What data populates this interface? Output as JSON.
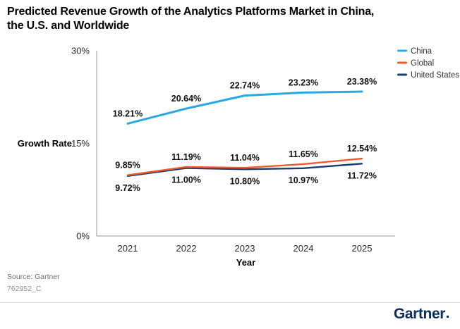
{
  "title": {
    "line1": "Predicted Revenue Growth of the Analytics Platforms Market in China,",
    "line2": "the U.S. and Worldwide"
  },
  "footer": {
    "source": "Source: Gartner",
    "code": "762952_C",
    "logo_text": "Gartner"
  },
  "colors": {
    "china_line": "#29A9E0",
    "global_line": "#F15B2B",
    "us_line": "#1B3E6F",
    "axis": "#ABABAB",
    "tick_text": "#2A2A2A",
    "data_label": "#111111",
    "legend_text": "#333333",
    "logo_navy": "#0B2D5C"
  },
  "chart_data": {
    "type": "line",
    "title": "Predicted Revenue Growth of the Analytics Platforms Market in China, the U.S. and Worldwide",
    "x_categories": [
      "2021",
      "2022",
      "2023",
      "2024",
      "2025"
    ],
    "xlabel": "Year",
    "ylabel": "Growth Rate",
    "ylim": [
      0,
      30
    ],
    "yticks": [
      {
        "value": 0,
        "label": "0%"
      },
      {
        "value": 15,
        "label": "15%"
      },
      {
        "value": 30,
        "label": "30%"
      }
    ],
    "grid": false,
    "legend_position": "top-right",
    "series": [
      {
        "name": "China",
        "color": "#29A9E0",
        "label_side": "above",
        "values": [
          18.21,
          20.64,
          22.74,
          23.23,
          23.38
        ],
        "labels": [
          "18.21%",
          "20.64%",
          "22.74%",
          "23.23%",
          "23.38%"
        ]
      },
      {
        "name": "Global",
        "color": "#F15B2B",
        "label_side": "above",
        "values": [
          9.85,
          11.19,
          11.04,
          11.65,
          12.54
        ],
        "labels": [
          "9.85%",
          "11.19%",
          "11.04%",
          "11.65%",
          "12.54%"
        ]
      },
      {
        "name": "United States",
        "color": "#1B3E6F",
        "label_side": "below",
        "values": [
          9.72,
          11.0,
          10.8,
          10.97,
          11.72
        ],
        "labels": [
          "9.72%",
          "11.00%",
          "10.80%",
          "10.97%",
          "11.72%"
        ]
      }
    ]
  }
}
